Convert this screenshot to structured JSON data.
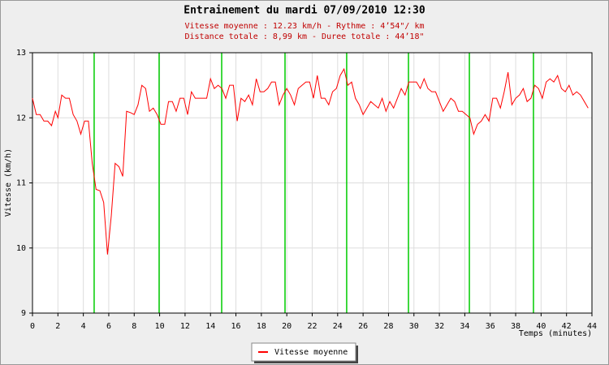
{
  "chart_data": {
    "type": "line",
    "title": "Entrainement du mardi 07/09/2010 12:30",
    "subtitle": [
      "Vitesse moyenne : 12.23 km/h - Rythme : 4’54\"/ km",
      "Distance totale : 8,99 km - Duree totale : 44’18\""
    ],
    "x_label": "Temps (minutes)",
    "y_label": "Vitesse (km/h)",
    "xlim": [
      0,
      44
    ],
    "xticks": [
      0,
      2,
      4,
      6,
      8,
      10,
      12,
      14,
      16,
      18,
      20,
      22,
      24,
      26,
      28,
      30,
      32,
      34,
      36,
      38,
      40,
      42,
      44
    ],
    "ylim": [
      9,
      13
    ],
    "yticks": [
      9,
      10,
      11,
      12,
      13
    ],
    "grid": true,
    "km_marks": [
      4.85,
      9.96,
      14.88,
      19.86,
      24.71,
      29.57,
      34.36,
      39.4
    ],
    "km_mark_color": "#00cc00",
    "legend": "bottom",
    "x": [
      0,
      0.3,
      0.6,
      0.9,
      1.2,
      1.5,
      1.8,
      2.0,
      2.3,
      2.6,
      2.9,
      3.2,
      3.5,
      3.8,
      4.1,
      4.4,
      4.7,
      5.0,
      5.3,
      5.6,
      5.9,
      6.2,
      6.5,
      6.8,
      7.1,
      7.4,
      7.7,
      8.0,
      8.3,
      8.6,
      8.9,
      9.2,
      9.5,
      9.8,
      10.1,
      10.4,
      10.7,
      11.0,
      11.3,
      11.6,
      11.9,
      12.2,
      12.5,
      12.8,
      13.1,
      13.4,
      13.7,
      14.0,
      14.3,
      14.6,
      14.9,
      15.2,
      15.5,
      15.8,
      16.1,
      16.4,
      16.7,
      17.0,
      17.3,
      17.6,
      17.9,
      18.2,
      18.5,
      18.8,
      19.1,
      19.4,
      19.7,
      20.0,
      20.3,
      20.6,
      20.9,
      21.2,
      21.5,
      21.8,
      22.1,
      22.4,
      22.7,
      23.0,
      23.3,
      23.6,
      23.9,
      24.2,
      24.5,
      24.8,
      25.1,
      25.4,
      25.7,
      26.0,
      26.3,
      26.6,
      26.9,
      27.2,
      27.5,
      27.8,
      28.1,
      28.4,
      28.7,
      29.0,
      29.3,
      29.6,
      29.9,
      30.2,
      30.5,
      30.8,
      31.1,
      31.4,
      31.7,
      32.0,
      32.3,
      32.6,
      32.9,
      33.2,
      33.5,
      33.8,
      34.1,
      34.4,
      34.7,
      35.0,
      35.3,
      35.6,
      35.9,
      36.2,
      36.5,
      36.8,
      37.1,
      37.4,
      37.7,
      38.0,
      38.3,
      38.6,
      38.9,
      39.2,
      39.5,
      39.8,
      40.1,
      40.4,
      40.7,
      41.0,
      41.3,
      41.6,
      41.9,
      42.2,
      42.5,
      42.8,
      43.1,
      43.4,
      43.7
    ],
    "series": [
      {
        "name": "Vitesse moyenne",
        "color": "#ff0000",
        "values": [
          12.3,
          12.05,
          12.05,
          11.95,
          11.95,
          11.88,
          12.1,
          12.0,
          12.35,
          12.3,
          12.3,
          12.05,
          11.95,
          11.75,
          11.95,
          11.95,
          11.3,
          10.9,
          10.88,
          10.7,
          9.9,
          10.5,
          11.3,
          11.25,
          11.1,
          12.1,
          12.08,
          12.05,
          12.2,
          12.5,
          12.45,
          12.1,
          12.15,
          12.05,
          11.9,
          11.9,
          12.25,
          12.25,
          12.1,
          12.3,
          12.3,
          12.05,
          12.4,
          12.3,
          12.3,
          12.3,
          12.3,
          12.6,
          12.45,
          12.5,
          12.45,
          12.3,
          12.5,
          12.5,
          11.95,
          12.3,
          12.25,
          12.35,
          12.2,
          12.6,
          12.4,
          12.4,
          12.45,
          12.55,
          12.55,
          12.2,
          12.35,
          12.45,
          12.35,
          12.2,
          12.45,
          12.5,
          12.55,
          12.55,
          12.3,
          12.65,
          12.3,
          12.3,
          12.2,
          12.4,
          12.45,
          12.65,
          12.75,
          12.5,
          12.55,
          12.3,
          12.2,
          12.05,
          12.15,
          12.25,
          12.2,
          12.15,
          12.3,
          12.1,
          12.25,
          12.15,
          12.3,
          12.45,
          12.35,
          12.55,
          12.55,
          12.55,
          12.45,
          12.6,
          12.45,
          12.4,
          12.4,
          12.25,
          12.1,
          12.2,
          12.3,
          12.25,
          12.1,
          12.1,
          12.05,
          12.0,
          11.75,
          11.9,
          11.95,
          12.05,
          11.95,
          12.3,
          12.3,
          12.15,
          12.4,
          12.7,
          12.2,
          12.3,
          12.35,
          12.45,
          12.25,
          12.3,
          12.5,
          12.45,
          12.3,
          12.55,
          12.6,
          12.55,
          12.65,
          12.45,
          12.4,
          12.5,
          12.35,
          12.4,
          12.35,
          12.25,
          12.15
        ]
      }
    ]
  }
}
